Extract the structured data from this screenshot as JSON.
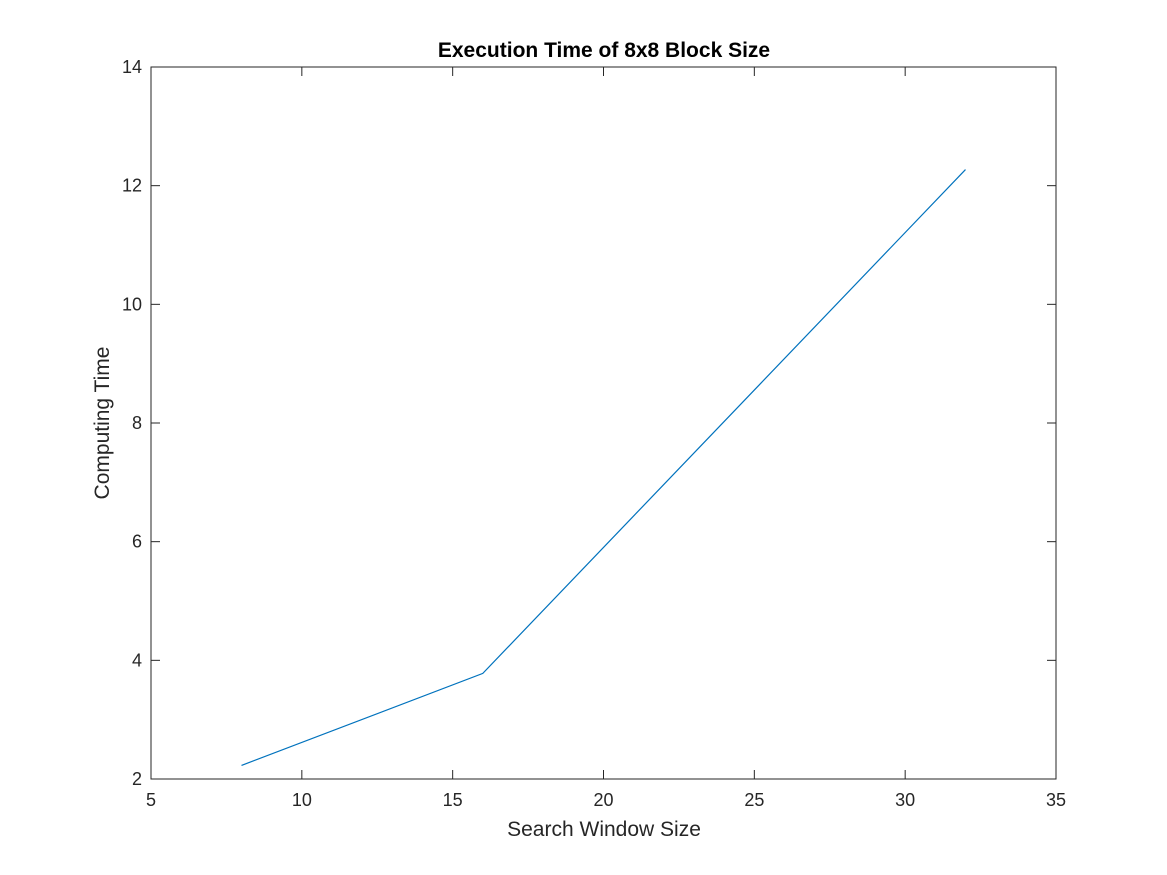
{
  "chart_data": {
    "type": "line",
    "title": "Execution Time of 8x8 Block Size",
    "xlabel": "Search Window Size",
    "ylabel": "Computing Time",
    "xlim": [
      5,
      35
    ],
    "ylim": [
      2,
      14
    ],
    "xticks": [
      5,
      10,
      15,
      20,
      25,
      30,
      35
    ],
    "yticks": [
      2,
      4,
      6,
      8,
      10,
      12,
      14
    ],
    "grid": false,
    "legend": "none",
    "series": [
      {
        "x": [
          8,
          16,
          32
        ],
        "y": [
          2.23,
          3.78,
          12.27
        ],
        "color": "#0072bd"
      }
    ]
  }
}
